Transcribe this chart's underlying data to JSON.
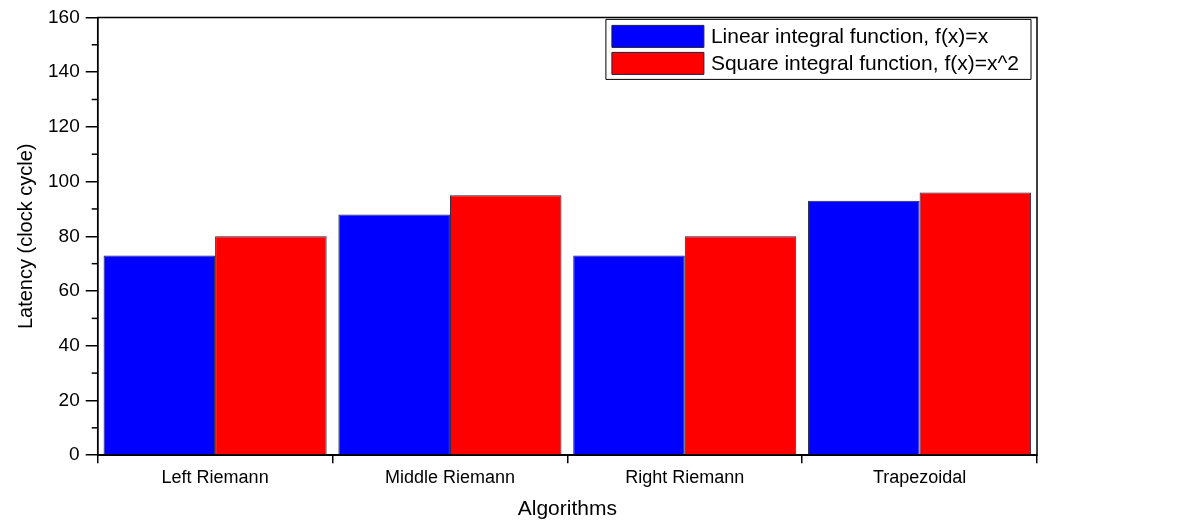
{
  "chart_data": {
    "type": "bar",
    "xlabel": "Algorithms",
    "ylabel": "Latency (clock cycle)",
    "categories": [
      "Left Riemann",
      "Middle Riemann",
      "Right Riemann",
      "Trapezoidal"
    ],
    "series": [
      {
        "name": "Linear integral function, f(x)=x",
        "color": "#0000ff",
        "values": [
          73,
          88,
          73,
          93
        ]
      },
      {
        "name": "Square integral function, f(x)=x^2",
        "color": "#ff0000",
        "values": [
          80,
          95,
          80,
          96
        ]
      }
    ],
    "ylim": [
      0,
      160
    ],
    "yticks": [
      0,
      20,
      40,
      60,
      80,
      100,
      120,
      140,
      160
    ],
    "grid": false,
    "legend": "top right"
  }
}
